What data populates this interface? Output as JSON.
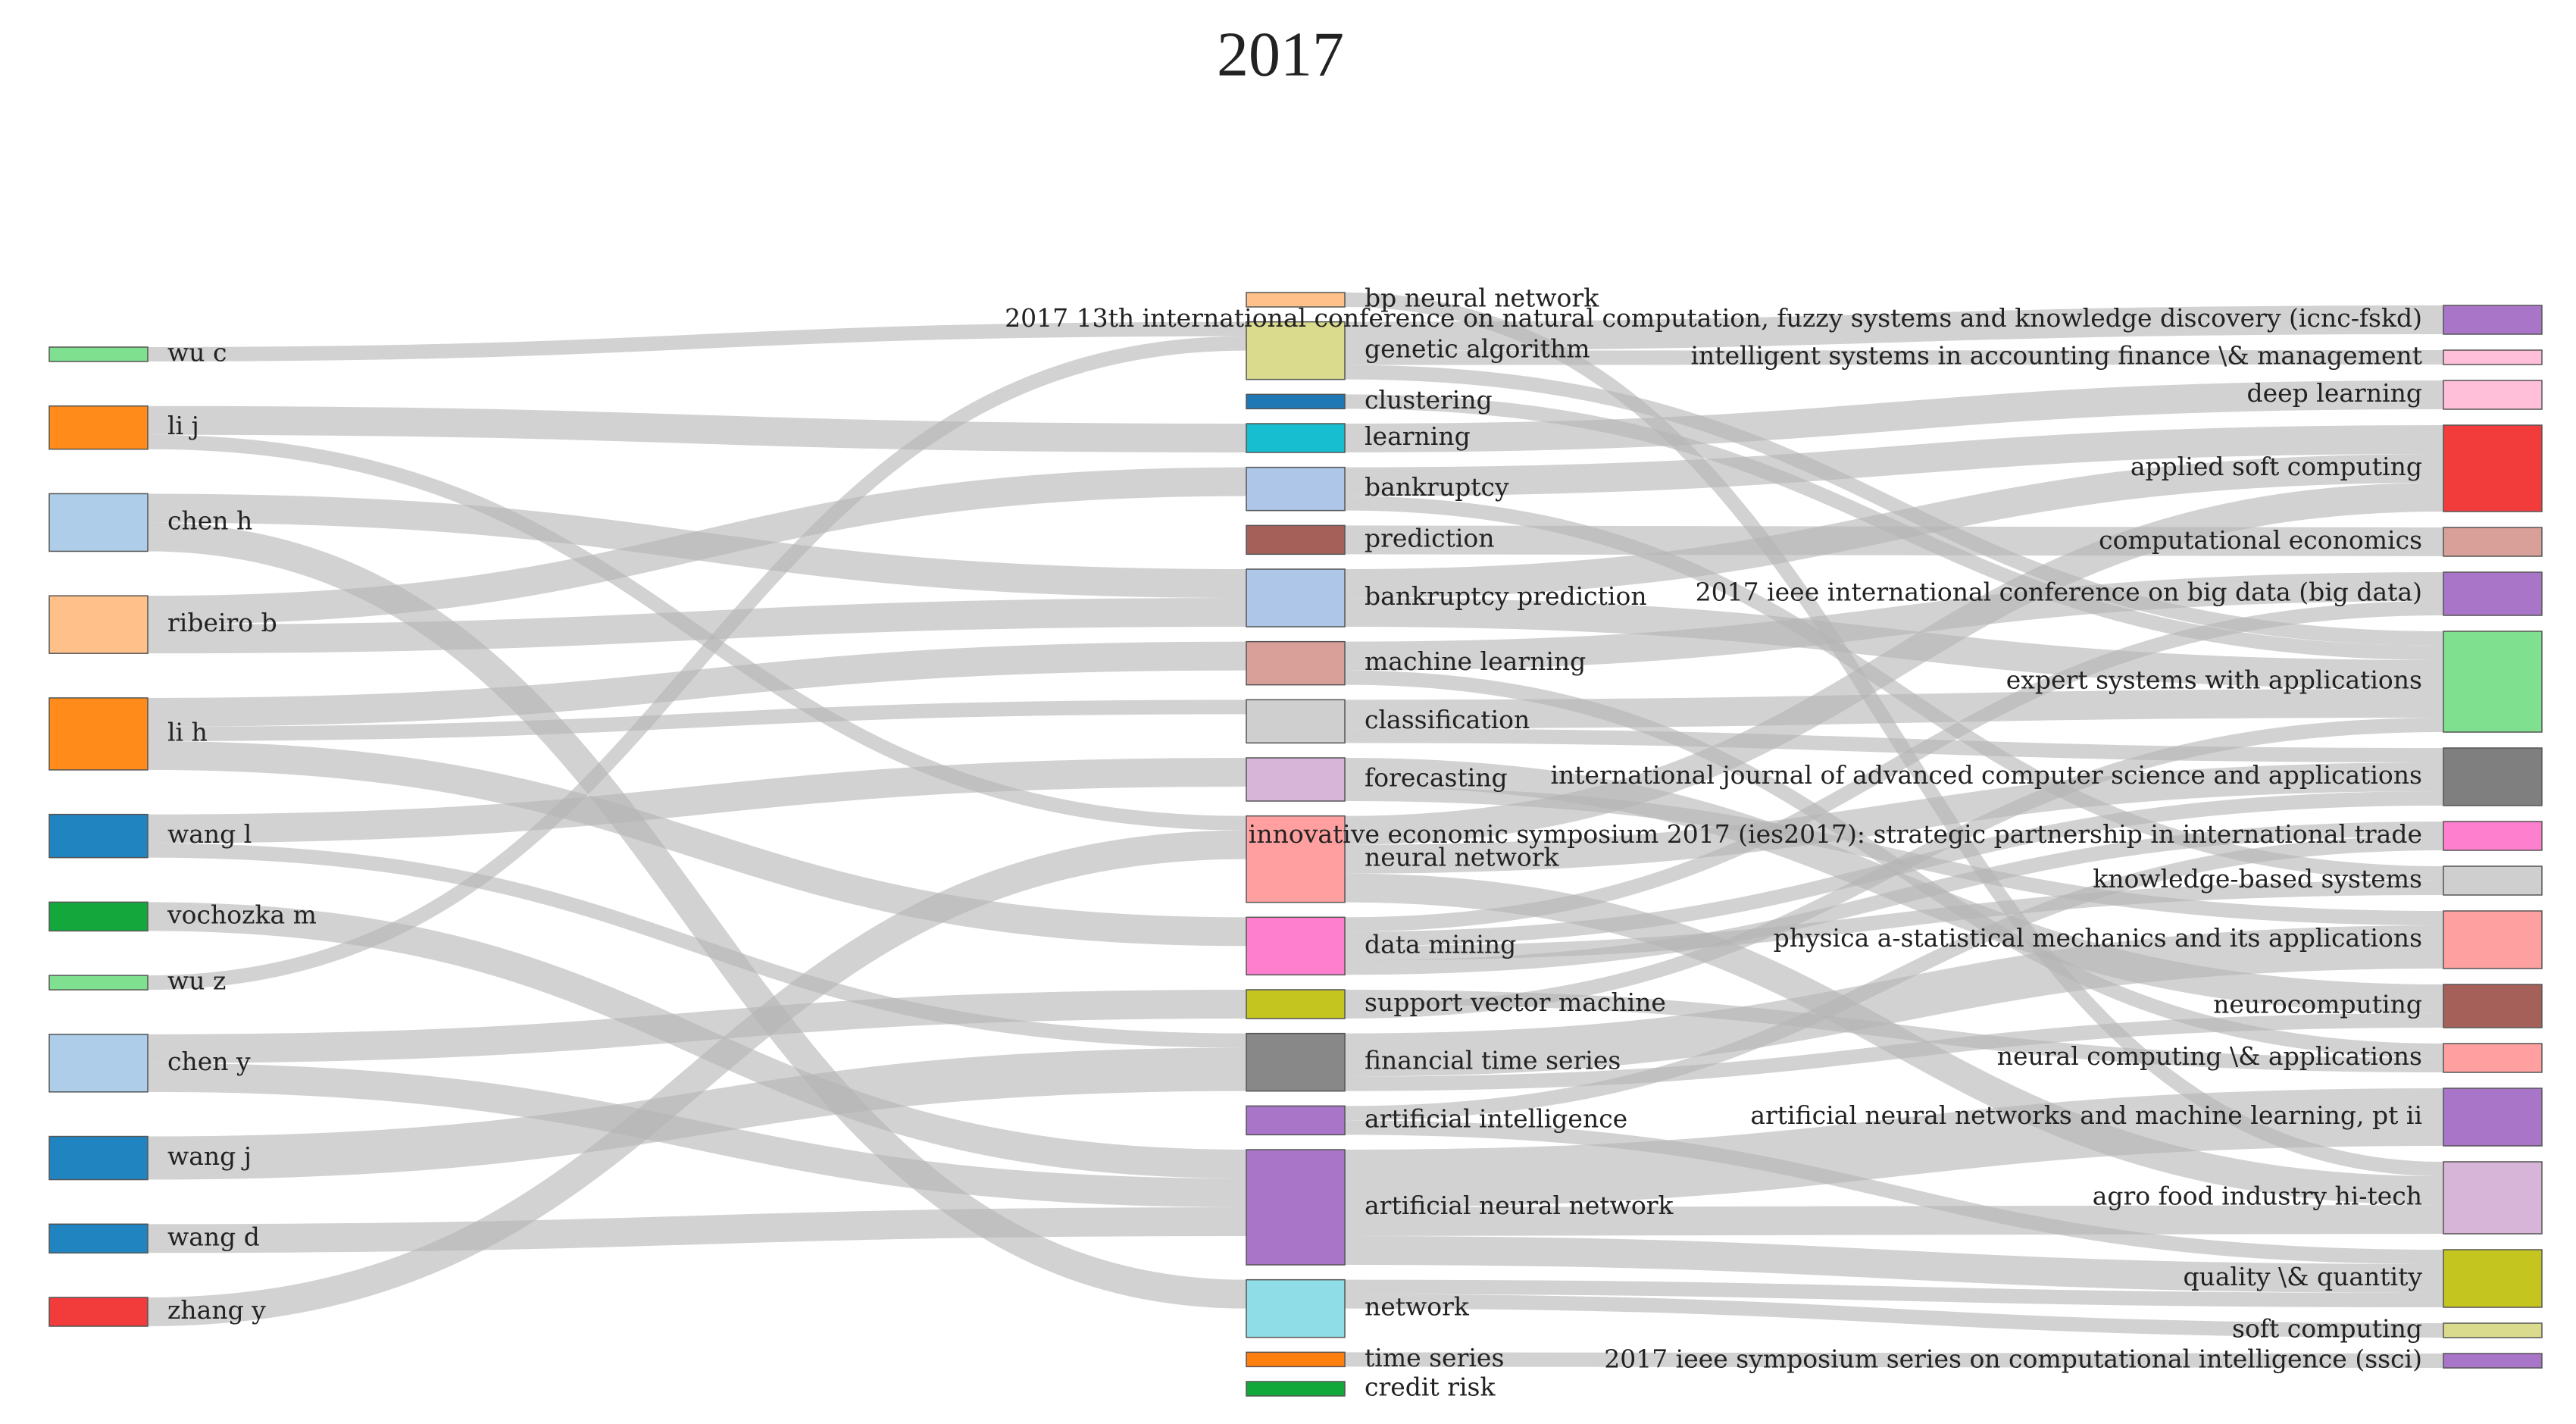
{
  "chart_data": {
    "type": "sankey",
    "title": "2017",
    "link_color": "#b4b4b4",
    "columns": [
      [
        {
          "name": "wu c",
          "color": "#7fe08f",
          "value": 1
        },
        {
          "name": "li j",
          "color": "#ff8c1a",
          "value": 3
        },
        {
          "name": "chen h",
          "color": "#aecde9",
          "value": 4
        },
        {
          "name": "ribeiro b",
          "color": "#ffc08a",
          "value": 4
        },
        {
          "name": "li h",
          "color": "#ff8c1a",
          "value": 5
        },
        {
          "name": "wang l",
          "color": "#1f84c0",
          "value": 3
        },
        {
          "name": "vochozka m",
          "color": "#14a83c",
          "value": 2
        },
        {
          "name": "wu z",
          "color": "#7fe08f",
          "value": 1
        },
        {
          "name": "chen y",
          "color": "#aecde9",
          "value": 4
        },
        {
          "name": "wang j",
          "color": "#1f84c0",
          "value": 3
        },
        {
          "name": "wang d",
          "color": "#1f84c0",
          "value": 2
        },
        {
          "name": "zhang y",
          "color": "#f23c3c",
          "value": 2
        }
      ],
      [
        {
          "name": "bp neural network",
          "color": "#ffc08a",
          "value": 1
        },
        {
          "name": "genetic algorithm",
          "color": "#dbdb8d",
          "value": 4
        },
        {
          "name": "clustering",
          "color": "#1f77b4",
          "value": 1
        },
        {
          "name": "learning",
          "color": "#17becf",
          "value": 2
        },
        {
          "name": "bankruptcy",
          "color": "#aec7e8",
          "value": 3
        },
        {
          "name": "prediction",
          "color": "#a5605a",
          "value": 2
        },
        {
          "name": "bankruptcy prediction",
          "color": "#aec7e8",
          "value": 4
        },
        {
          "name": "machine learning",
          "color": "#d9a09a",
          "value": 3
        },
        {
          "name": "classification",
          "color": "#cfcfcf",
          "value": 3
        },
        {
          "name": "forecasting",
          "color": "#d7b5d8",
          "value": 3
        },
        {
          "name": "neural network",
          "color": "#ff9f9f",
          "value": 6
        },
        {
          "name": "data mining",
          "color": "#ff7fcf",
          "value": 4
        },
        {
          "name": "support vector machine",
          "color": "#c5c520",
          "value": 2
        },
        {
          "name": "financial time series",
          "color": "#888888",
          "value": 4
        },
        {
          "name": "artificial intelligence",
          "color": "#a875c8",
          "value": 2
        },
        {
          "name": "artificial neural network",
          "color": "#a875c8",
          "value": 8
        },
        {
          "name": "network",
          "color": "#8fdde6",
          "value": 4
        },
        {
          "name": "time series",
          "color": "#ff7f0e",
          "value": 1
        },
        {
          "name": "credit risk",
          "color": "#12a83a",
          "value": 1
        }
      ],
      [
        {
          "name": "2017 13th international conference on natural computation, fuzzy systems and knowledge discovery (icnc-fskd)",
          "color": "#a875c8",
          "value": 2
        },
        {
          "name": "intelligent systems in accounting finance \\& management",
          "color": "#ffbfd8",
          "value": 1
        },
        {
          "name": "deep learning",
          "color": "#ffbfd8",
          "value": 2
        },
        {
          "name": "applied soft computing",
          "color": "#f23c3c",
          "value": 6
        },
        {
          "name": "computational economics",
          "color": "#d9a09a",
          "value": 2
        },
        {
          "name": "2017 ieee international conference on big data (big data)",
          "color": "#a875c8",
          "value": 3
        },
        {
          "name": "expert systems with applications",
          "color": "#7fe08f",
          "value": 7
        },
        {
          "name": "international journal of advanced computer science and applications",
          "color": "#7f7f7f",
          "value": 4
        },
        {
          "name": "innovative economic symposium 2017 (ies2017): strategic partnership in international trade",
          "color": "#ff7fcf",
          "value": 2
        },
        {
          "name": "knowledge-based systems",
          "color": "#cfcfcf",
          "value": 2
        },
        {
          "name": "physica a-statistical mechanics and its applications",
          "color": "#ffa0a0",
          "value": 4
        },
        {
          "name": "neurocomputing",
          "color": "#a5605a",
          "value": 3
        },
        {
          "name": "neural computing \\& applications",
          "color": "#ff9f9f",
          "value": 2
        },
        {
          "name": "artificial neural networks and machine learning, pt ii",
          "color": "#a875c8",
          "value": 4
        },
        {
          "name": "agro food industry hi-tech",
          "color": "#d7b5d8",
          "value": 5
        },
        {
          "name": "quality \\& quantity",
          "color": "#c5c520",
          "value": 4
        },
        {
          "name": "soft computing",
          "color": "#dbdb8d",
          "value": 1
        },
        {
          "name": "2017 ieee symposium series on computational intelligence (ssci)",
          "color": "#a875c8",
          "value": 1
        }
      ]
    ],
    "links": [
      {
        "source": "wu c",
        "target": "genetic algorithm",
        "value": 1
      },
      {
        "source": "li j",
        "target": "learning",
        "value": 2
      },
      {
        "source": "li j",
        "target": "neural network",
        "value": 1
      },
      {
        "source": "chen h",
        "target": "bankruptcy prediction",
        "value": 2
      },
      {
        "source": "chen h",
        "target": "network",
        "value": 2
      },
      {
        "source": "ribeiro b",
        "target": "bankruptcy",
        "value": 2
      },
      {
        "source": "ribeiro b",
        "target": "bankruptcy prediction",
        "value": 2
      },
      {
        "source": "li h",
        "target": "machine learning",
        "value": 2
      },
      {
        "source": "li h",
        "target": "classification",
        "value": 1
      },
      {
        "source": "li h",
        "target": "data mining",
        "value": 2
      },
      {
        "source": "wang l",
        "target": "forecasting",
        "value": 2
      },
      {
        "source": "wang l",
        "target": "financial time series",
        "value": 1
      },
      {
        "source": "vochozka m",
        "target": "artificial neural network",
        "value": 2
      },
      {
        "source": "wu z",
        "target": "genetic algorithm",
        "value": 1
      },
      {
        "source": "chen y",
        "target": "support vector machine",
        "value": 2
      },
      {
        "source": "chen y",
        "target": "artificial neural network",
        "value": 2
      },
      {
        "source": "wang j",
        "target": "financial time series",
        "value": 3
      },
      {
        "source": "wang d",
        "target": "artificial neural network",
        "value": 2
      },
      {
        "source": "zhang y",
        "target": "neural network",
        "value": 2
      },
      {
        "source": "bp neural network",
        "target": "agro food industry hi-tech",
        "value": 1
      },
      {
        "source": "genetic algorithm",
        "target": "2017 13th international conference on natural computation, fuzzy systems and knowledge discovery (icnc-fskd)",
        "value": 2
      },
      {
        "source": "genetic algorithm",
        "target": "intelligent systems in accounting finance \\& management",
        "value": 1
      },
      {
        "source": "genetic algorithm",
        "target": "expert systems with applications",
        "value": 1
      },
      {
        "source": "clustering",
        "target": "expert systems with applications",
        "value": 1
      },
      {
        "source": "learning",
        "target": "deep learning",
        "value": 2
      },
      {
        "source": "bankruptcy",
        "target": "applied soft computing",
        "value": 2
      },
      {
        "source": "bankruptcy",
        "target": "knowledge-based systems",
        "value": 1
      },
      {
        "source": "prediction",
        "target": "computational economics",
        "value": 2
      },
      {
        "source": "bankruptcy prediction",
        "target": "applied soft computing",
        "value": 2
      },
      {
        "source": "bankruptcy prediction",
        "target": "expert systems with applications",
        "value": 2
      },
      {
        "source": "machine learning",
        "target": "2017 ieee international conference on big data (big data)",
        "value": 2
      },
      {
        "source": "machine learning",
        "target": "neural computing \\& applications",
        "value": 1
      },
      {
        "source": "classification",
        "target": "expert systems with applications",
        "value": 2
      },
      {
        "source": "classification",
        "target": "international journal of advanced computer science and applications",
        "value": 1
      },
      {
        "source": "forecasting",
        "target": "neurocomputing",
        "value": 2
      },
      {
        "source": "forecasting",
        "target": "physica a-statistical mechanics and its applications",
        "value": 1
      },
      {
        "source": "neural network",
        "target": "applied soft computing",
        "value": 2
      },
      {
        "source": "neural network",
        "target": "international journal of advanced computer science and applications",
        "value": 2
      },
      {
        "source": "neural network",
        "target": "agro food industry hi-tech",
        "value": 2
      },
      {
        "source": "data mining",
        "target": "2017 ieee international conference on big data (big data)",
        "value": 1
      },
      {
        "source": "data mining",
        "target": "international journal of advanced computer science and applications",
        "value": 1
      },
      {
        "source": "data mining",
        "target": "knowledge-based systems",
        "value": 1
      },
      {
        "source": "data mining",
        "target": "innovative economic symposium 2017 (ies2017): strategic partnership in international trade",
        "value": 1
      },
      {
        "source": "support vector machine",
        "target": "neural computing \\& applications",
        "value": 1
      },
      {
        "source": "support vector machine",
        "target": "expert systems with applications",
        "value": 1
      },
      {
        "source": "financial time series",
        "target": "physica a-statistical mechanics and its applications",
        "value": 3
      },
      {
        "source": "financial time series",
        "target": "neurocomputing",
        "value": 1
      },
      {
        "source": "artificial intelligence",
        "target": "innovative economic symposium 2017 (ies2017): strategic partnership in international trade",
        "value": 1
      },
      {
        "source": "artificial intelligence",
        "target": "quality \\& quantity",
        "value": 1
      },
      {
        "source": "artificial neural network",
        "target": "artificial neural networks and machine learning, pt ii",
        "value": 4
      },
      {
        "source": "artificial neural network",
        "target": "agro food industry hi-tech",
        "value": 2
      },
      {
        "source": "artificial neural network",
        "target": "quality \\& quantity",
        "value": 2
      },
      {
        "source": "network",
        "target": "quality \\& quantity",
        "value": 1
      },
      {
        "source": "network",
        "target": "soft computing",
        "value": 1
      },
      {
        "source": "time series",
        "target": "2017 ieee symposium series on computational intelligence (ssci)",
        "value": 1
      }
    ]
  }
}
